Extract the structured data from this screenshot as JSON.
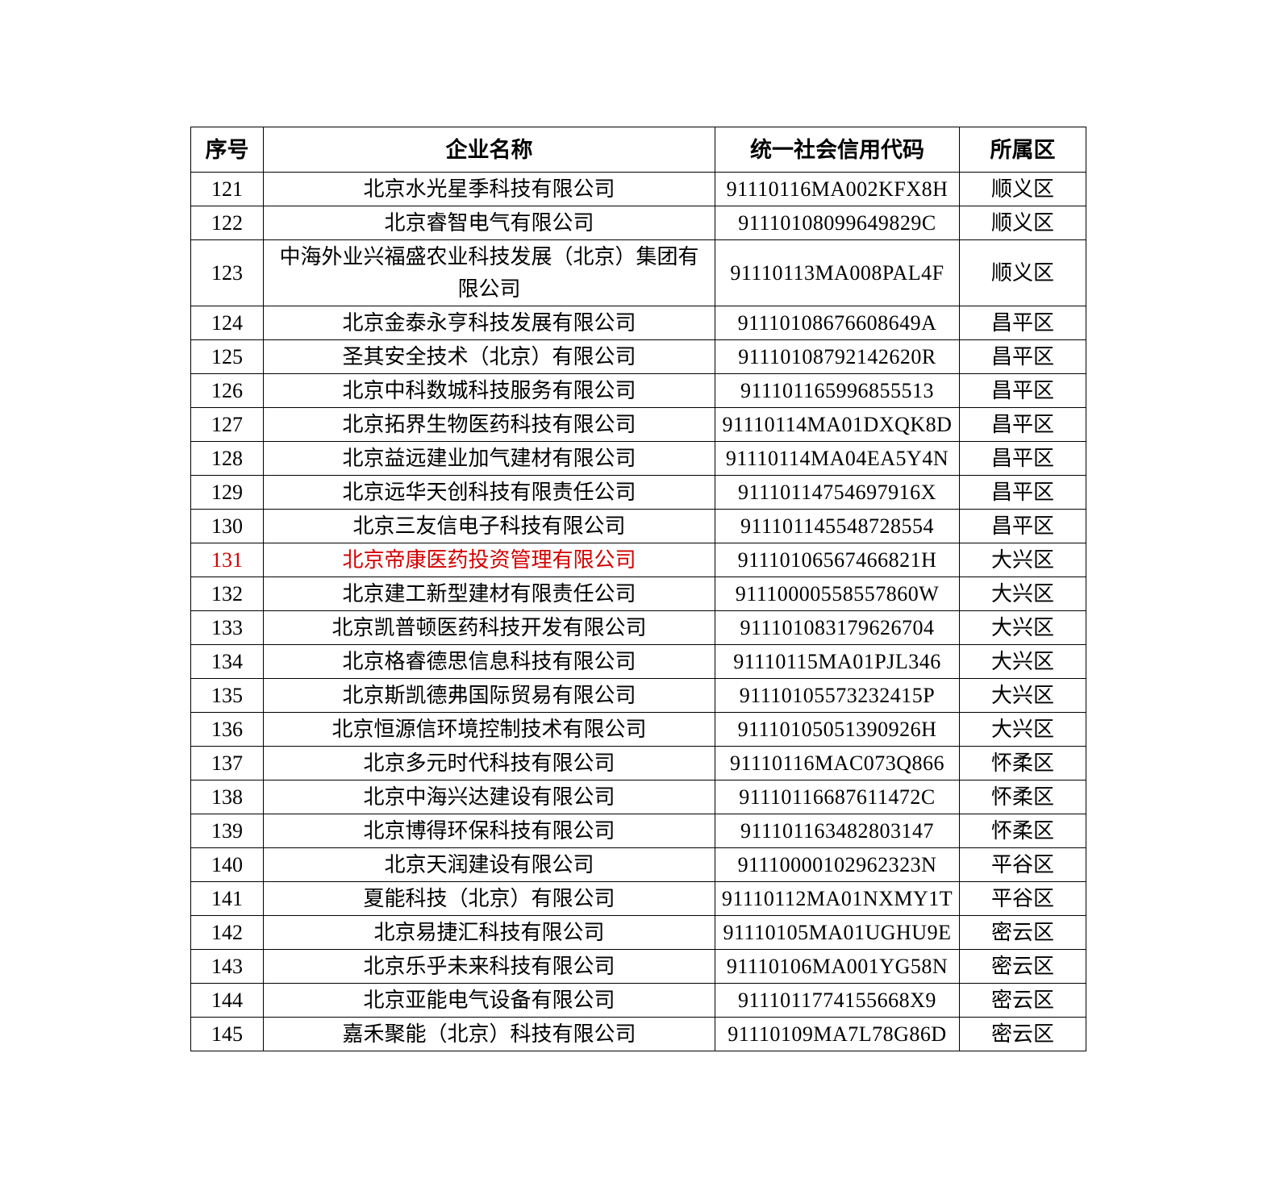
{
  "table": {
    "headers": [
      "序号",
      "企业名称",
      "统一社会信用代码",
      "所属区"
    ],
    "highlight_color": "#d40000",
    "rows": [
      {
        "seq": "121",
        "name": "北京水光星季科技有限公司",
        "code": "91110116MA002KFX8H",
        "district": "顺义区"
      },
      {
        "seq": "122",
        "name": "北京睿智电气有限公司",
        "code": "911101080996498​29C",
        "district": "顺义区"
      },
      {
        "seq": "123",
        "name": "中海外业兴福盛农业科技发展（北京）集团有限公司",
        "code": "91110113MA008PAL4F",
        "district": "顺义区"
      },
      {
        "seq": "124",
        "name": "北京金泰永亨科技发展有限公司",
        "code": "91110108676608649A",
        "district": "昌平区"
      },
      {
        "seq": "125",
        "name": "圣其安全技术（北京）有限公司",
        "code": "91110108792142620R",
        "district": "昌平区"
      },
      {
        "seq": "126",
        "name": "北京中科数城科技服务有限公司",
        "code": "911101165996855513",
        "district": "昌平区"
      },
      {
        "seq": "127",
        "name": "北京拓界生物医药科技有限公司",
        "code": "91110114MA01DXQK8D",
        "district": "昌平区"
      },
      {
        "seq": "128",
        "name": "北京益远建业加气建材有限公司",
        "code": "91110114MA04EA5Y4N",
        "district": "昌平区"
      },
      {
        "seq": "129",
        "name": "北京远华天创科技有限责任公司",
        "code": "91110114754697916X",
        "district": "昌平区"
      },
      {
        "seq": "130",
        "name": "北京三友信电子科技有限公司",
        "code": "911101145548728554",
        "district": "昌平区"
      },
      {
        "seq": "131",
        "name": "北京帝康医药投资管理有限公司",
        "code": "91110106567466821H",
        "district": "大兴区",
        "highlight": true
      },
      {
        "seq": "132",
        "name": "北京建工新型建材有限责任公司",
        "code": "91110000558557860W",
        "district": "大兴区"
      },
      {
        "seq": "133",
        "name": "北京凯普顿医药科技开发有限公司",
        "code": "911101083179626704",
        "district": "大兴区"
      },
      {
        "seq": "134",
        "name": "北京格睿德思信息科技有限公司",
        "code": "91110115MA01PJL346",
        "district": "大兴区"
      },
      {
        "seq": "135",
        "name": "北京斯凯德弗国际贸易有限公司",
        "code": "91110105573232415P",
        "district": "大兴区"
      },
      {
        "seq": "136",
        "name": "北京恒源信环境控制技术有限公司",
        "code": "91110105051390926H",
        "district": "大兴区"
      },
      {
        "seq": "137",
        "name": "北京多元时代科技有限公司",
        "code": "91110116MAC073Q866",
        "district": "怀柔区"
      },
      {
        "seq": "138",
        "name": "北京中海兴达建设有限公司",
        "code": "91110116687611472C",
        "district": "怀柔区"
      },
      {
        "seq": "139",
        "name": "北京博得环保科技有限公司",
        "code": "911101163482803147",
        "district": "怀柔区"
      },
      {
        "seq": "140",
        "name": "北京天润建设有限公司",
        "code": "91110000102962323N",
        "district": "平谷区"
      },
      {
        "seq": "141",
        "name": "夏能科技（北京）有限公司",
        "code": "91110112MA01NXMY1T",
        "district": "平谷区"
      },
      {
        "seq": "142",
        "name": "北京易捷汇科技有限公司",
        "code": "91110105MA01UGHU9E",
        "district": "密云区"
      },
      {
        "seq": "143",
        "name": "北京乐乎未来科技有限公司",
        "code": "91110106MA001YG58N",
        "district": "密云区"
      },
      {
        "seq": "144",
        "name": "北京亚能电气设备有限公司",
        "code": "911101177415566​8X9",
        "district": "密云区"
      },
      {
        "seq": "145",
        "name": "嘉禾聚能（北京）科技有限公司",
        "code": "91110109MA7L78G86D",
        "district": "密云区"
      }
    ]
  }
}
